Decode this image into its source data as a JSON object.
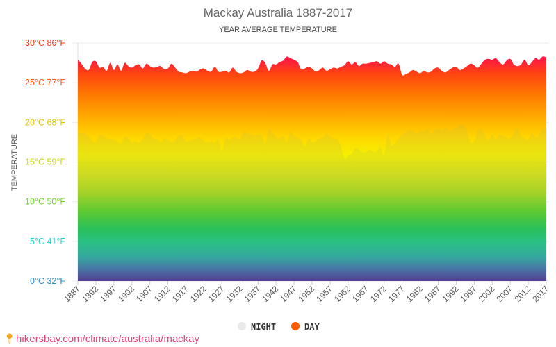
{
  "chart_data": {
    "type": "area",
    "title": "Mackay Australia 1887-2017",
    "subtitle": "YEAR AVERAGE TEMPERATURE",
    "ylabel": "TEMPERATURE",
    "xlabel": "",
    "ylim": [
      0,
      30
    ],
    "xlim": [
      1887,
      2017
    ],
    "y_ticks": [
      {
        "value": 0,
        "label": "0°C 32°F",
        "color": "#2a8fc8"
      },
      {
        "value": 5,
        "label": "5°C 41°F",
        "color": "#1fd4c4"
      },
      {
        "value": 10,
        "label": "10°C 50°F",
        "color": "#6ed61e"
      },
      {
        "value": 15,
        "label": "15°C 59°F",
        "color": "#c8d81a"
      },
      {
        "value": 20,
        "label": "20°C 68°F",
        "color": "#e0c800"
      },
      {
        "value": 25,
        "label": "25°C 77°F",
        "color": "#ff5a1e"
      },
      {
        "value": 30,
        "label": "30°C 86°F",
        "color": "#ff3a1a"
      }
    ],
    "x_ticks": [
      "1887",
      "1892",
      "1897",
      "1902",
      "1907",
      "1912",
      "1917",
      "1922",
      "1927",
      "1932",
      "1937",
      "1942",
      "1947",
      "1952",
      "1957",
      "1962",
      "1967",
      "1972",
      "1977",
      "1982",
      "1987",
      "1992",
      "1997",
      "2002",
      "2007",
      "2012",
      "2017"
    ],
    "legend": [
      {
        "name": "NIGHT",
        "color": "#e8e8e8"
      },
      {
        "name": "DAY",
        "color": "#ff5a00"
      }
    ],
    "legend_position": "bottom",
    "grid": true,
    "series": [
      {
        "name": "DAY",
        "start_year": 1887,
        "values": [
          27.9,
          27.4,
          26.8,
          26.6,
          27.6,
          27.7,
          26.9,
          27.0,
          26.5,
          27.5,
          26.6,
          27.3,
          26.5,
          27.5,
          27.1,
          26.9,
          27.2,
          27.3,
          26.8,
          27.4,
          27.1,
          26.9,
          27.0,
          27.1,
          26.7,
          26.8,
          27.4,
          26.9,
          26.4,
          26.3,
          26.2,
          26.4,
          26.5,
          26.4,
          26.7,
          26.8,
          26.5,
          26.4,
          27.0,
          26.4,
          26.4,
          26.5,
          26.3,
          26.9,
          26.4,
          26.2,
          26.3,
          26.6,
          26.4,
          26.4,
          26.8,
          27.8,
          27.5,
          26.5,
          27.3,
          27.3,
          27.6,
          27.8,
          28.3,
          28.1,
          27.9,
          27.6,
          26.7,
          26.8,
          27.0,
          26.8,
          26.4,
          26.6,
          26.9,
          26.5,
          26.7,
          26.9,
          26.8,
          27.0,
          27.2,
          27.7,
          27.3,
          27.6,
          27.1,
          27.4,
          27.4,
          27.5,
          27.6,
          27.7,
          27.4,
          27.7,
          27.4,
          27.3,
          27.0,
          27.4,
          26.0,
          26.1,
          26.3,
          26.6,
          26.4,
          26.2,
          26.5,
          26.3,
          26.4,
          26.8,
          26.9,
          26.5,
          26.3,
          26.6,
          26.9,
          27.0,
          26.6,
          26.8,
          27.1,
          27.4,
          27.2,
          26.9,
          27.4,
          27.9,
          28.0,
          27.9,
          28.1,
          27.6,
          27.3,
          27.8,
          28.0,
          27.3,
          27.1,
          27.3,
          27.9,
          27.2,
          27.6,
          28.1,
          27.9,
          28.3,
          28.2
        ]
      },
      {
        "name": "NIGHT",
        "start_year": 1887,
        "values": [
          18.7,
          18.6,
          18.6,
          18.2,
          17.7,
          17.5,
          18.4,
          18.3,
          18.0,
          17.9,
          17.8,
          17.6,
          17.3,
          18.2,
          18.0,
          17.5,
          17.6,
          17.4,
          17.9,
          18.6,
          18.5,
          18.0,
          17.9,
          17.5,
          18.0,
          17.8,
          17.5,
          17.8,
          18.3,
          18.4,
          17.6,
          17.7,
          17.8,
          18.0,
          18.1,
          17.6,
          17.5,
          17.6,
          17.4,
          17.8,
          16.4,
          18.0,
          17.8,
          18.1,
          18.1,
          17.9,
          18.8,
          18.6,
          18.5,
          18.3,
          18.5,
          18.4,
          17.3,
          19.2,
          18.6,
          18.2,
          18.0,
          18.3,
          17.5,
          18.8,
          18.3,
          18.1,
          17.8,
          16.9,
          18.0,
          17.5,
          17.6,
          18.0,
          18.1,
          18.6,
          18.2,
          18.0,
          17.9,
          17.0,
          15.4,
          15.8,
          16.0,
          16.8,
          16.6,
          16.2,
          16.3,
          16.6,
          16.3,
          16.4,
          16.9,
          15.9,
          18.5,
          17.1,
          17.3,
          18.0,
          18.5,
          18.7,
          19.0,
          18.9,
          18.6,
          18.9,
          18.8,
          19.2,
          18.5,
          19.0,
          19.2,
          19.0,
          19.3,
          18.9,
          19.1,
          19.3,
          19.6,
          19.7,
          19.0,
          17.5,
          17.6,
          18.9,
          19.2,
          18.3,
          17.8,
          18.4,
          17.9,
          18.5,
          18.3,
          18.1,
          18.0,
          18.7,
          19.3,
          18.2,
          18.0,
          17.8,
          18.6,
          18.1,
          18.3,
          19.2,
          19.0
        ]
      }
    ]
  },
  "footer": {
    "url_text": "hikersbay.com/climate/australia/mackay",
    "pin_icon": "map-pin-icon"
  }
}
